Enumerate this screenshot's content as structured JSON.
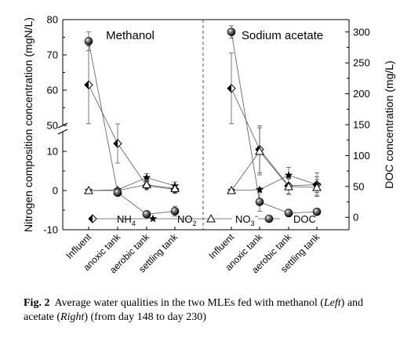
{
  "chart_data": {
    "type": "line",
    "panels": [
      {
        "title": "Methanol",
        "categories": [
          "Influent",
          "anoxic tank",
          "aerobic tank",
          "settling tank"
        ]
      },
      {
        "title": "Sodium acetate",
        "categories": [
          "Influent",
          "anoxic tank",
          "aerobic tank",
          "settling tank"
        ]
      }
    ],
    "y_left": {
      "label": "Nitrogen composition concentration (mgN/L)",
      "broken": true,
      "lower_range": [
        -10,
        15
      ],
      "upper_range": [
        50,
        80
      ],
      "ticks_lower": [
        "-10",
        "0",
        "10"
      ],
      "ticks_upper": [
        "50",
        "60",
        "70",
        "80"
      ]
    },
    "y_right": {
      "label": "DOC concentration (mg/L)",
      "range": [
        -20,
        320
      ],
      "ticks": [
        "0",
        "50",
        "100",
        "150",
        "200",
        "250",
        "300"
      ]
    },
    "series": [
      {
        "name_main": "NH",
        "name_sub": "4",
        "name_sup": "",
        "marker": "half-diamond",
        "axis": "left",
        "methanol": [
          61.5,
          12,
          1.2,
          0.3
        ],
        "methanol_err": [
          11,
          5,
          1,
          1
        ],
        "acetate": [
          60.5,
          10.5,
          1.2,
          1.5
        ],
        "acetate_err": [
          10,
          6,
          2,
          2
        ]
      },
      {
        "name_main": "NO",
        "name_sub": "2",
        "name_sup": "",
        "marker": "star",
        "axis": "left",
        "methanol": [
          0,
          0.2,
          3.3,
          1.2
        ],
        "methanol_err": [
          0.3,
          0.5,
          1,
          1
        ],
        "acetate": [
          0,
          0.2,
          3.9,
          1.5
        ],
        "acetate_err": [
          0.3,
          0.5,
          2,
          3
        ]
      },
      {
        "name_main": "NO",
        "name_sub": "3",
        "name_sup": "−",
        "marker": "triangle-open",
        "axis": "left",
        "methanol": [
          0,
          0,
          1.5,
          0.5
        ],
        "methanol_err": [
          0.3,
          0.5,
          1,
          1
        ],
        "acetate": [
          0,
          10,
          1,
          0.8
        ],
        "acetate_err": [
          0.3,
          6,
          2,
          2
        ]
      },
      {
        "name_main": "DOC",
        "name_sub": "",
        "name_sup": "",
        "marker": "sphere",
        "axis": "right",
        "methanol": [
          285,
          40,
          5,
          10
        ],
        "methanol_err": [
          15,
          5,
          5,
          8
        ],
        "acetate": [
          300,
          25,
          7,
          9
        ],
        "acetate_err": [
          10,
          15,
          6,
          5
        ]
      }
    ]
  },
  "caption": {
    "label": "Fig. 2",
    "text1": "Average water qualities in the two MLEs fed with methanol (",
    "left": "Left",
    "text2": ") and acetate (",
    "right": "Right",
    "text3": ") (from day 148 to day 230)"
  }
}
